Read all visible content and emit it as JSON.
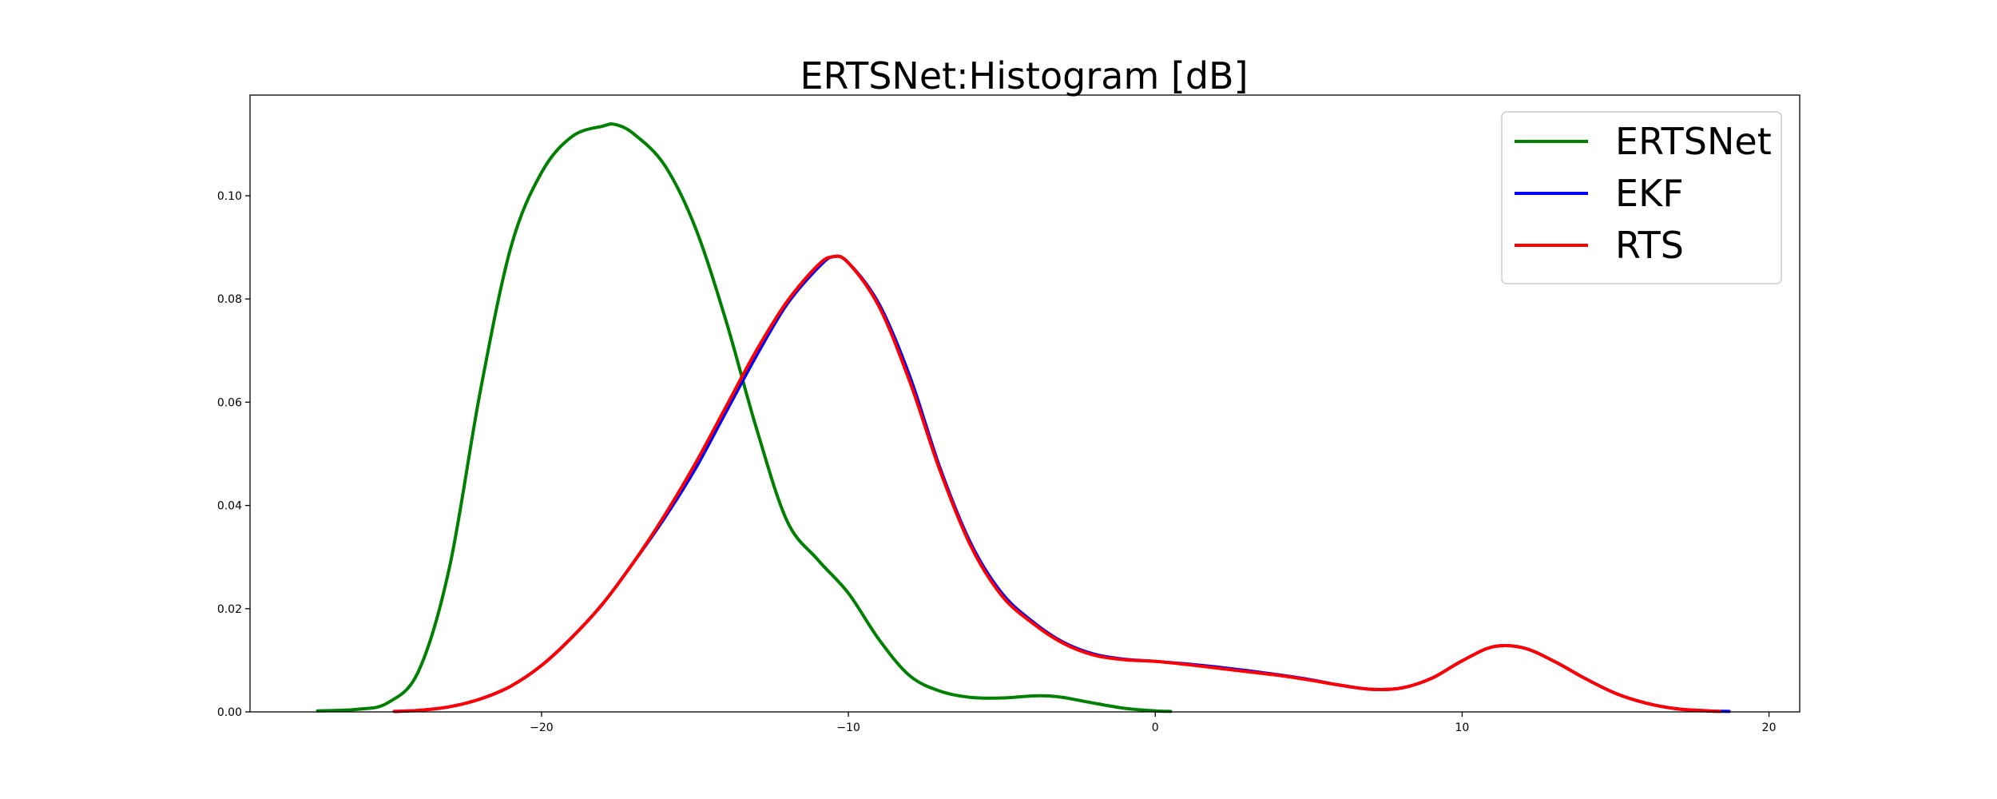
{
  "chart_data": {
    "type": "line",
    "title": "ERTSNet:Histogram [dB]",
    "xlabel": "",
    "ylabel": "",
    "xlim": [
      -29.5,
      21
    ],
    "ylim": [
      0,
      0.1195
    ],
    "xticks": [
      -20,
      -10,
      0,
      10,
      20
    ],
    "xtick_labels": [
      "−20",
      "−10",
      "0",
      "10",
      "20"
    ],
    "yticks": [
      0.0,
      0.02,
      0.04,
      0.06,
      0.08,
      0.1
    ],
    "ytick_labels": [
      "0.00",
      "0.02",
      "0.04",
      "0.06",
      "0.08",
      "0.10"
    ],
    "grid": false,
    "legend_position": "top-right",
    "series": [
      {
        "name": "ERTSNet",
        "color": "#008000",
        "x": [
          -27.3,
          -26,
          -25,
          -24,
          -23,
          -22,
          -21,
          -20,
          -19,
          -18,
          -17.6,
          -17,
          -16,
          -15,
          -14,
          -13,
          -12,
          -11,
          -10,
          -9,
          -8,
          -7,
          -6,
          -5,
          -4,
          -3.5,
          -3,
          -2,
          -1,
          0,
          0.5
        ],
        "y": [
          0.0002,
          0.0005,
          0.0018,
          0.008,
          0.028,
          0.062,
          0.09,
          0.1045,
          0.1115,
          0.1135,
          0.1138,
          0.112,
          0.106,
          0.094,
          0.076,
          0.055,
          0.037,
          0.0295,
          0.023,
          0.014,
          0.007,
          0.004,
          0.0028,
          0.0027,
          0.0031,
          0.0031,
          0.0028,
          0.0017,
          0.0007,
          0.0002,
          0.0001
        ]
      },
      {
        "name": "EKF",
        "color": "#0000ff",
        "x": [
          -24.8,
          -24,
          -23,
          -22,
          -21,
          -20,
          -19,
          -18,
          -17,
          -16,
          -15,
          -14,
          -13,
          -12,
          -11,
          -10.5,
          -10,
          -9,
          -8,
          -7,
          -6,
          -5,
          -4,
          -3,
          -2,
          -1,
          0,
          1,
          2,
          3,
          4,
          5,
          6,
          7,
          8,
          9,
          10,
          11,
          12,
          13,
          14,
          15,
          16,
          17,
          18,
          18.7
        ],
        "y": [
          0.0001,
          0.0003,
          0.001,
          0.0025,
          0.005,
          0.009,
          0.0145,
          0.021,
          0.029,
          0.0375,
          0.047,
          0.058,
          0.069,
          0.079,
          0.086,
          0.0882,
          0.087,
          0.079,
          0.065,
          0.047,
          0.0325,
          0.023,
          0.0175,
          0.0135,
          0.0112,
          0.0102,
          0.0098,
          0.0093,
          0.0087,
          0.008,
          0.0072,
          0.0063,
          0.0052,
          0.0044,
          0.0046,
          0.0065,
          0.0099,
          0.0126,
          0.0124,
          0.0098,
          0.0065,
          0.0036,
          0.0017,
          0.0006,
          0.0002,
          0.0001
        ]
      },
      {
        "name": "RTS",
        "color": "#ff0000",
        "x": [
          -24.8,
          -24,
          -23,
          -22,
          -21,
          -20,
          -19,
          -18,
          -17,
          -16,
          -15,
          -14,
          -13,
          -12,
          -11,
          -10.5,
          -10,
          -9,
          -8,
          -7,
          -6,
          -5,
          -4,
          -3,
          -2,
          -1,
          0,
          1,
          2,
          3,
          4,
          5,
          6,
          7,
          8,
          9,
          10,
          11,
          12,
          13,
          14,
          15,
          16,
          17,
          18,
          18.4
        ],
        "y": [
          0.0001,
          0.0003,
          0.001,
          0.0025,
          0.005,
          0.009,
          0.0145,
          0.021,
          0.029,
          0.038,
          0.048,
          0.059,
          0.07,
          0.0795,
          0.0865,
          0.0882,
          0.087,
          0.0785,
          0.064,
          0.0465,
          0.032,
          0.0225,
          0.0172,
          0.0133,
          0.011,
          0.0101,
          0.0098,
          0.0092,
          0.0085,
          0.0078,
          0.0071,
          0.0062,
          0.0052,
          0.0044,
          0.0046,
          0.0065,
          0.0099,
          0.0126,
          0.0124,
          0.0098,
          0.0065,
          0.0036,
          0.0017,
          0.0006,
          0.0002,
          0.0001
        ]
      }
    ]
  }
}
